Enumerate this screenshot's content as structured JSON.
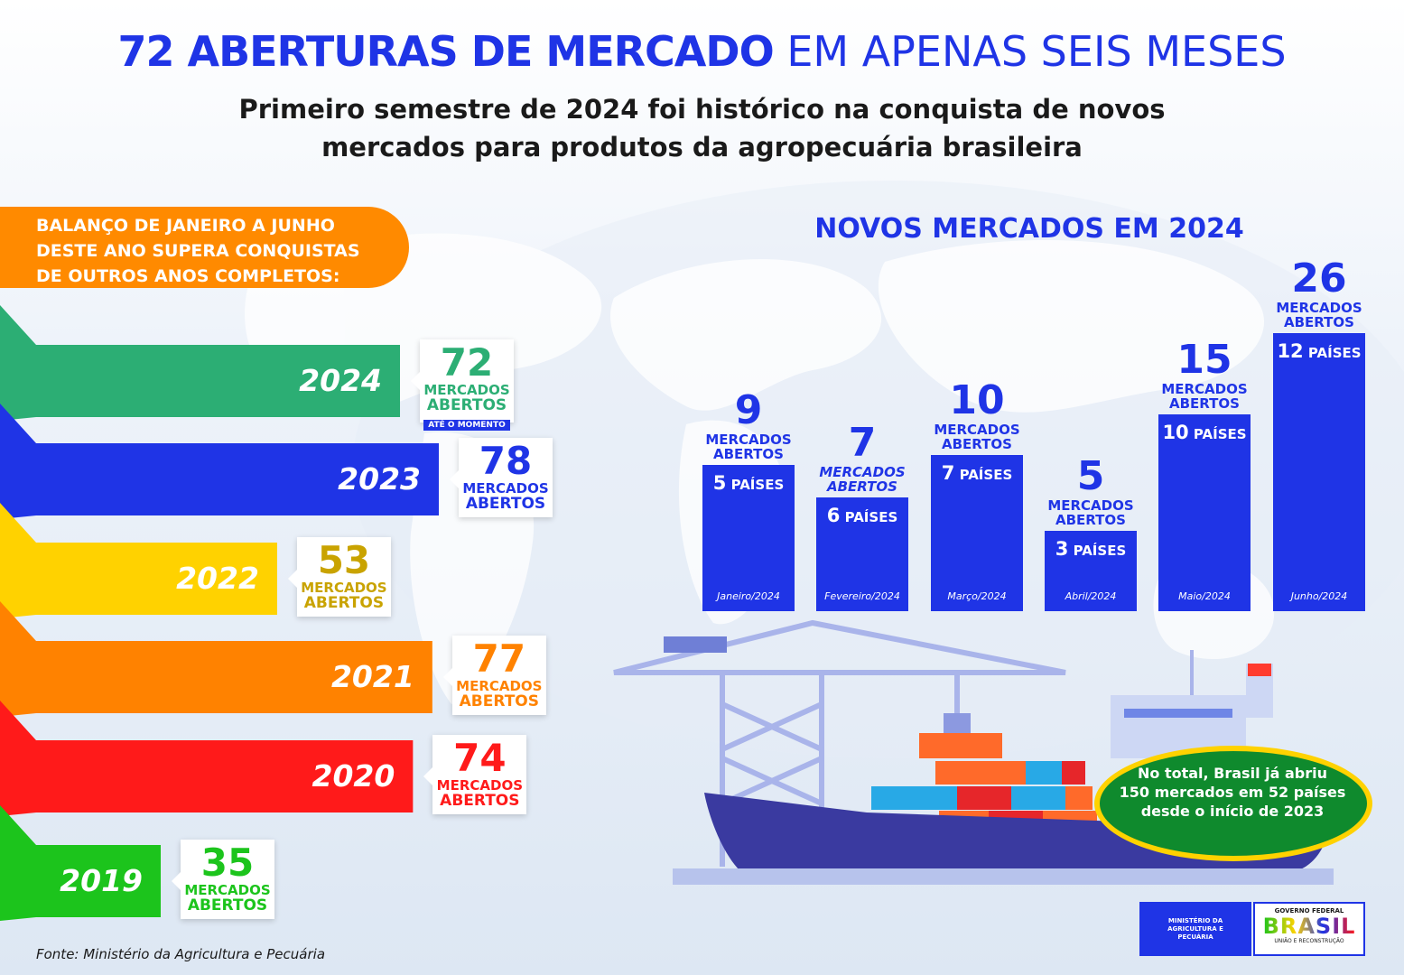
{
  "header": {
    "title_bold": "72 ABERTURAS DE MERCADO",
    "title_light": "EM APENAS SEIS MESES",
    "subtitle_line1": "Primeiro semestre de 2024 foi histórico na conquista de novos",
    "subtitle_line2": "mercados para produtos da agropecuária brasileira"
  },
  "badge": {
    "line1": "BALANÇO DE JANEIRO A JUNHO",
    "line2": "DESTE ANO SUPERA CONQUISTAS",
    "line3": "DE OUTROS ANOS COMPLETOS:"
  },
  "colors": {
    "y2024": "#2cae74",
    "y2023": "#1f34e6",
    "y2022": "#ffd200",
    "y2021": "#ff8200",
    "y2020": "#ff1a1a",
    "y2019": "#1cc41c",
    "num2022": "#c9a300",
    "bar": "#1f34e6"
  },
  "chart_data": [
    {
      "type": "bar",
      "orientation": "horizontal",
      "categories": [
        "2024",
        "2023",
        "2022",
        "2021",
        "2020",
        "2019"
      ],
      "values": [
        72,
        78,
        53,
        77,
        74,
        35
      ],
      "value_label": "MERCADOS ABERTOS",
      "value_label_line1": "MERCADOS",
      "value_label_line2": "ABERTOS",
      "note_2024": "ATÉ O MOMENTO"
    },
    {
      "type": "bar",
      "title": "NOVOS MERCADOS EM 2024",
      "categories": [
        "Janeiro/2024",
        "Fevereiro/2024",
        "Março/2024",
        "Abril/2024",
        "Maio/2024",
        "Junho/2024"
      ],
      "values": [
        9,
        7,
        10,
        5,
        15,
        26
      ],
      "countries": [
        5,
        6,
        7,
        3,
        10,
        12
      ],
      "countries_label": "PAÍSES",
      "value_label_line1": "MERCADOS",
      "value_label_line2": "ABERTOS",
      "ylim": [
        0,
        26
      ]
    }
  ],
  "callout": {
    "line1": "No total, Brasil já abriu",
    "line2": "150 mercados em 52 países",
    "line3": "desde o início de 2023"
  },
  "source": "Fonte: Ministério da Agricultura e Pecuária",
  "logos": {
    "ministry_line1": "MINISTÉRIO DA",
    "ministry_line2": "AGRICULTURA E",
    "ministry_line3": "PECUÁRIA",
    "gov_line1": "GOVERNO FEDERAL",
    "gov_line2": "BRASIL",
    "gov_line3": "UNIÃO E RECONSTRUÇÃO"
  }
}
